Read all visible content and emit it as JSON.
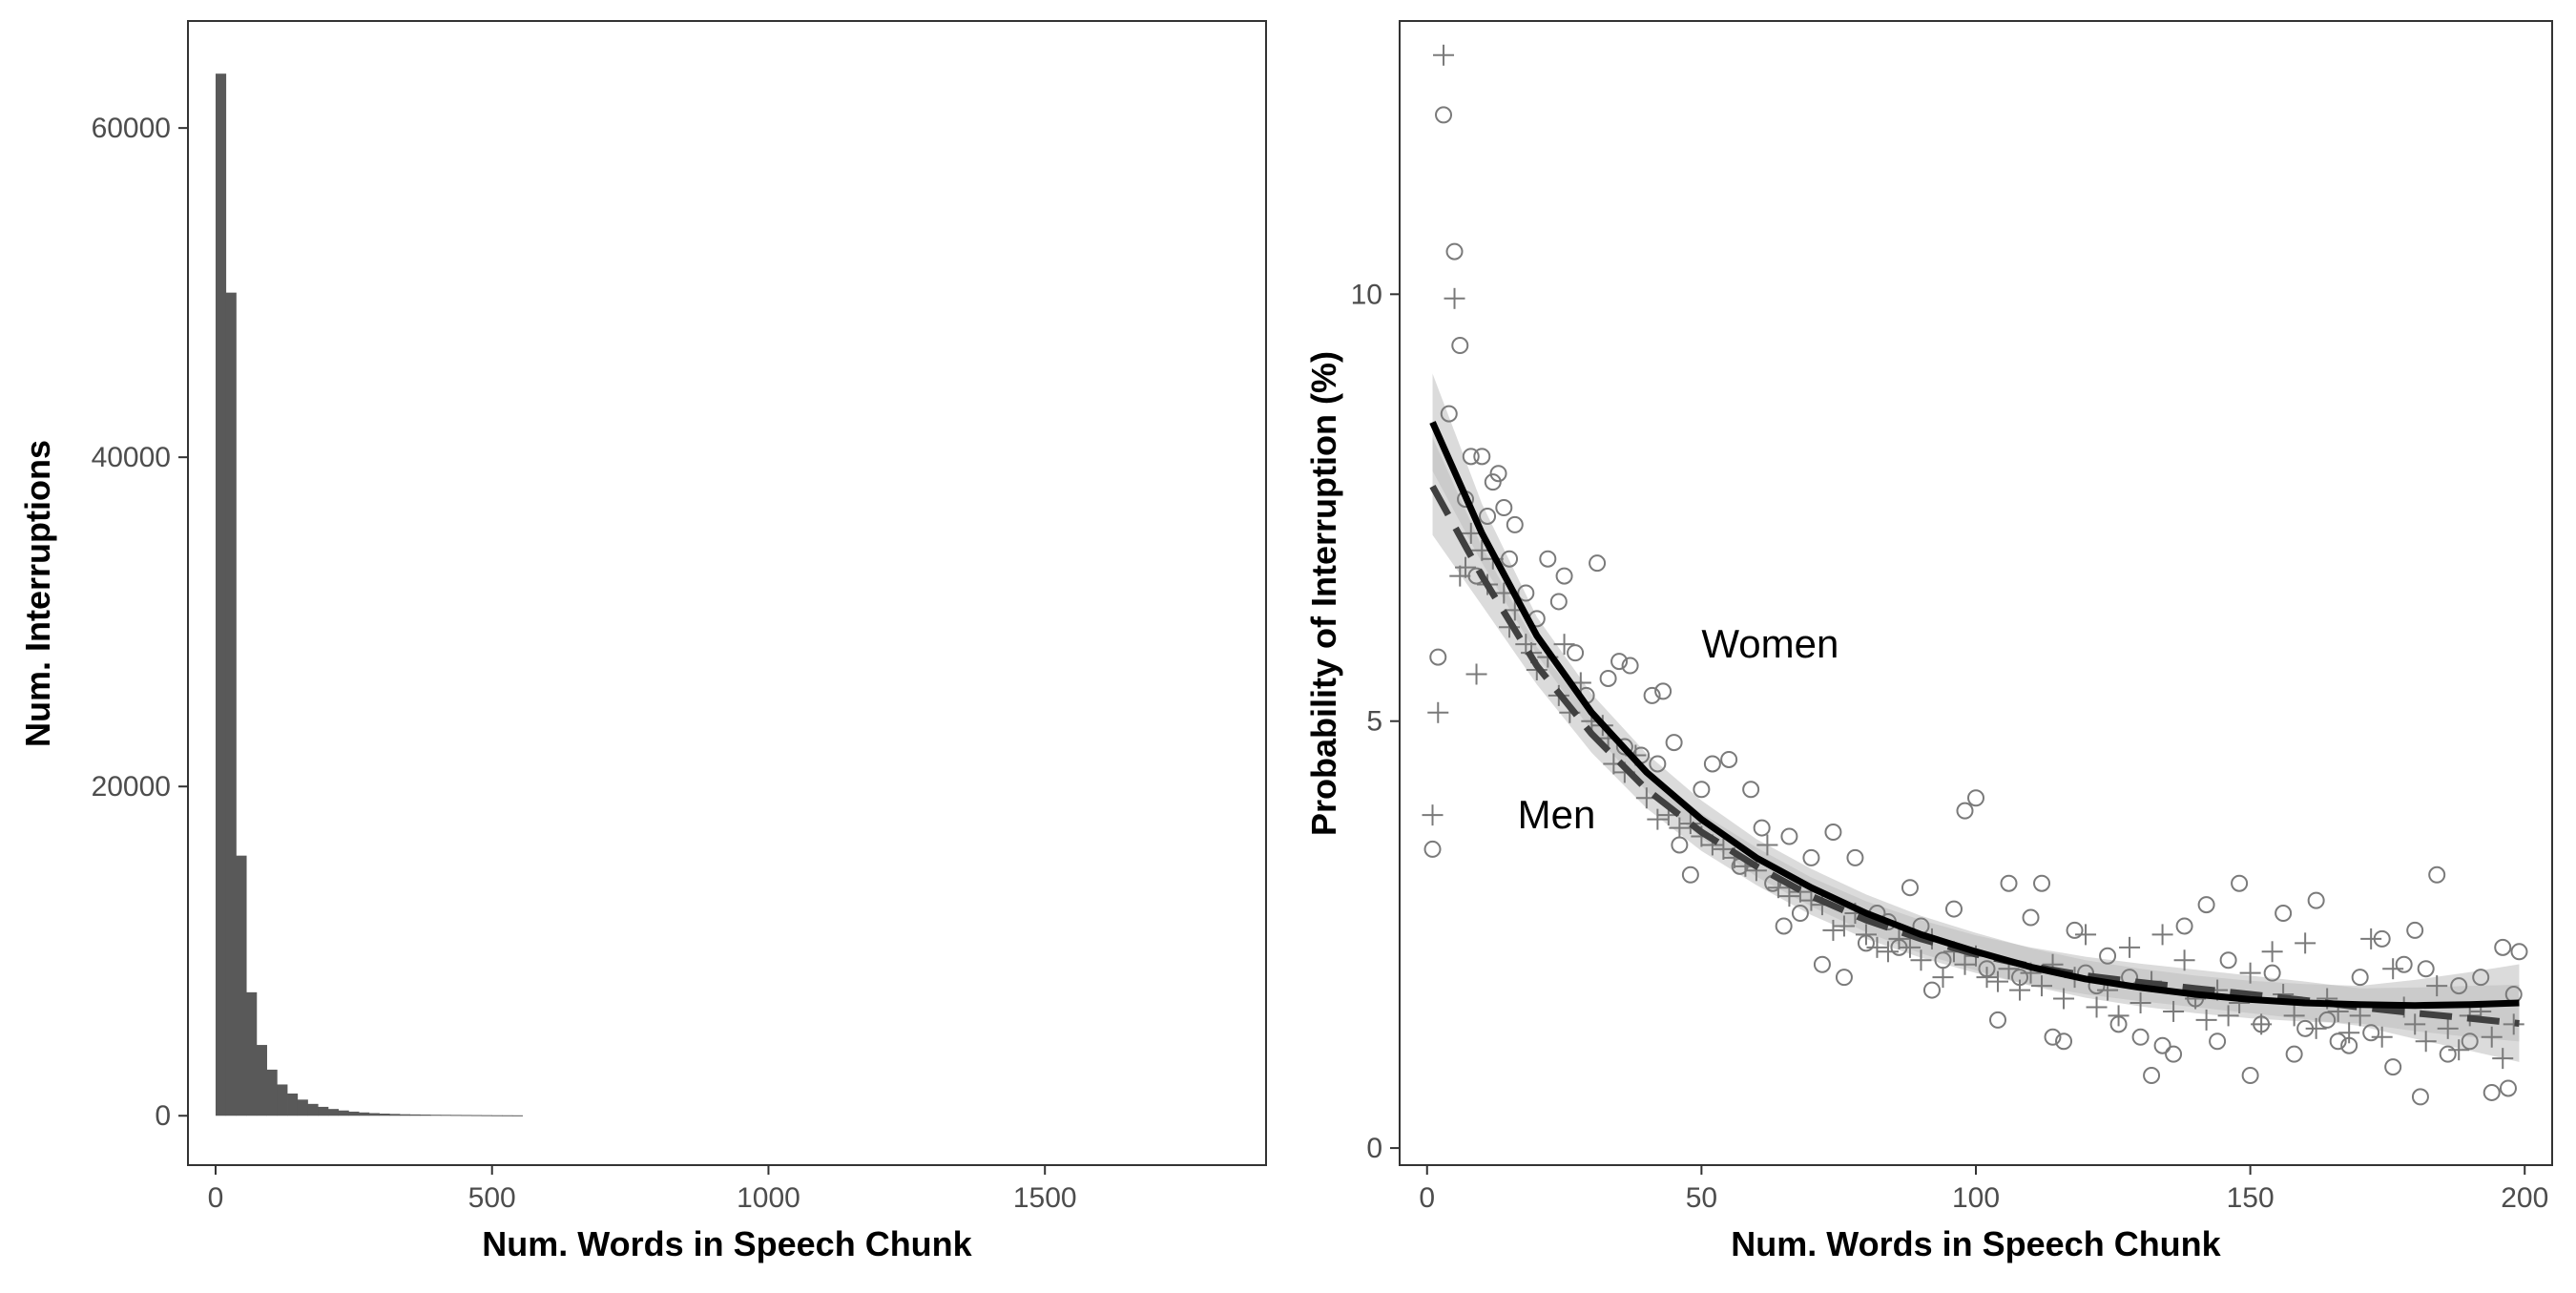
{
  "chart_data": [
    {
      "type": "bar",
      "subtype": "histogram",
      "xlabel": "Num. Words in Speech Chunk",
      "ylabel": "Num. Interruptions",
      "xlim": [
        -50,
        1900
      ],
      "ylim": [
        -3000,
        66500
      ],
      "xticks": [
        0,
        500,
        1000,
        1500
      ],
      "yticks": [
        0,
        20000,
        40000,
        60000
      ],
      "bin_width": 18.5,
      "bin_start": 0,
      "values": [
        63300,
        50000,
        15800,
        7500,
        4300,
        2800,
        1900,
        1350,
        980,
        720,
        540,
        410,
        320,
        250,
        200,
        160,
        130,
        110,
        90,
        80,
        70,
        60,
        55,
        50,
        45,
        40,
        35,
        30,
        28,
        25
      ],
      "grid": false,
      "bar_color": "#595959"
    },
    {
      "type": "scatter",
      "xlabel": "Num. Words in Speech Chunk",
      "ylabel": "Probability of Interruption (%)",
      "xlim": [
        -5,
        205
      ],
      "ylim": [
        -0.2,
        13.2
      ],
      "xticks": [
        0,
        50,
        100,
        150,
        200
      ],
      "yticks": [
        0,
        5,
        10
      ],
      "grid": false,
      "annotations": [
        {
          "text": "Women",
          "x": 50,
          "y": 5.9
        },
        {
          "text": "Men",
          "x": 16.5,
          "y": 3.9
        }
      ],
      "series": [
        {
          "marker": "circle",
          "line_style": "solid",
          "fit": [
            [
              1,
              8.5
            ],
            [
              10,
              7.2
            ],
            [
              20,
              6.0
            ],
            [
              30,
              5.1
            ],
            [
              40,
              4.4
            ],
            [
              50,
              3.85
            ],
            [
              60,
              3.4
            ],
            [
              70,
              3.05
            ],
            [
              80,
              2.75
            ],
            [
              90,
              2.5
            ],
            [
              100,
              2.3
            ],
            [
              110,
              2.12
            ],
            [
              120,
              1.98
            ],
            [
              130,
              1.88
            ],
            [
              140,
              1.8
            ],
            [
              150,
              1.74
            ],
            [
              160,
              1.7
            ],
            [
              170,
              1.68
            ],
            [
              180,
              1.67
            ],
            [
              190,
              1.68
            ],
            [
              199,
              1.7
            ]
          ],
          "points": [
            [
              1,
              3.5
            ],
            [
              2,
              5.75
            ],
            [
              3,
              12.1
            ],
            [
              4,
              8.6
            ],
            [
              5,
              10.5
            ],
            [
              6,
              9.4
            ],
            [
              7,
              7.6
            ],
            [
              8,
              8.1
            ],
            [
              9,
              6.7
            ],
            [
              10,
              8.1
            ],
            [
              11,
              7.4
            ],
            [
              12,
              7.8
            ],
            [
              13,
              7.9
            ],
            [
              14,
              7.5
            ],
            [
              15,
              6.9
            ],
            [
              16,
              7.3
            ],
            [
              18,
              6.5
            ],
            [
              20,
              6.2
            ],
            [
              22,
              6.9
            ],
            [
              24,
              6.4
            ],
            [
              25,
              6.7
            ],
            [
              27,
              5.8
            ],
            [
              29,
              5.3
            ],
            [
              31,
              6.85
            ],
            [
              33,
              5.5
            ],
            [
              35,
              5.7
            ],
            [
              36,
              4.7
            ],
            [
              37,
              5.65
            ],
            [
              39,
              4.6
            ],
            [
              41,
              5.3
            ],
            [
              42,
              4.5
            ],
            [
              43,
              5.35
            ],
            [
              45,
              4.75
            ],
            [
              46,
              3.55
            ],
            [
              48,
              3.2
            ],
            [
              50,
              4.2
            ],
            [
              52,
              4.5
            ],
            [
              55,
              4.55
            ],
            [
              57,
              3.3
            ],
            [
              59,
              4.2
            ],
            [
              61,
              3.75
            ],
            [
              63,
              3.1
            ],
            [
              65,
              2.6
            ],
            [
              66,
              3.65
            ],
            [
              68,
              2.75
            ],
            [
              70,
              3.4
            ],
            [
              72,
              2.15
            ],
            [
              74,
              3.7
            ],
            [
              76,
              2.0
            ],
            [
              78,
              3.4
            ],
            [
              80,
              2.4
            ],
            [
              82,
              2.75
            ],
            [
              84,
              2.65
            ],
            [
              86,
              2.35
            ],
            [
              88,
              3.05
            ],
            [
              90,
              2.6
            ],
            [
              92,
              1.85
            ],
            [
              94,
              2.2
            ],
            [
              96,
              2.8
            ],
            [
              98,
              3.95
            ],
            [
              100,
              4.1
            ],
            [
              102,
              2.1
            ],
            [
              104,
              1.5
            ],
            [
              106,
              3.1
            ],
            [
              108,
              2.0
            ],
            [
              110,
              2.7
            ],
            [
              112,
              3.1
            ],
            [
              114,
              1.3
            ],
            [
              116,
              1.25
            ],
            [
              118,
              2.55
            ],
            [
              120,
              2.05
            ],
            [
              122,
              1.9
            ],
            [
              124,
              2.25
            ],
            [
              126,
              1.45
            ],
            [
              128,
              2.0
            ],
            [
              130,
              1.3
            ],
            [
              132,
              0.85
            ],
            [
              134,
              1.2
            ],
            [
              136,
              1.1
            ],
            [
              138,
              2.6
            ],
            [
              140,
              1.75
            ],
            [
              142,
              2.85
            ],
            [
              144,
              1.25
            ],
            [
              146,
              2.2
            ],
            [
              148,
              3.1
            ],
            [
              150,
              0.85
            ],
            [
              152,
              1.45
            ],
            [
              154,
              2.05
            ],
            [
              156,
              2.75
            ],
            [
              158,
              1.1
            ],
            [
              160,
              1.4
            ],
            [
              162,
              2.9
            ],
            [
              164,
              1.5
            ],
            [
              166,
              1.25
            ],
            [
              168,
              1.2
            ],
            [
              170,
              2.0
            ],
            [
              172,
              1.35
            ],
            [
              174,
              2.45
            ],
            [
              176,
              0.95
            ],
            [
              178,
              2.15
            ],
            [
              180,
              2.55
            ],
            [
              181,
              0.6
            ],
            [
              182,
              2.1
            ],
            [
              184,
              3.2
            ],
            [
              186,
              1.1
            ],
            [
              188,
              1.9
            ],
            [
              190,
              1.25
            ],
            [
              192,
              2.0
            ],
            [
              194,
              0.65
            ],
            [
              196,
              2.35
            ],
            [
              197,
              0.7
            ],
            [
              198,
              1.8
            ],
            [
              199,
              2.3
            ]
          ]
        },
        {
          "marker": "plus",
          "line_style": "dashed",
          "fit": [
            [
              1,
              7.75
            ],
            [
              10,
              6.7
            ],
            [
              20,
              5.65
            ],
            [
              30,
              4.85
            ],
            [
              40,
              4.2
            ],
            [
              50,
              3.7
            ],
            [
              60,
              3.3
            ],
            [
              70,
              2.95
            ],
            [
              80,
              2.67
            ],
            [
              90,
              2.45
            ],
            [
              100,
              2.27
            ],
            [
              110,
              2.13
            ],
            [
              120,
              2.02
            ],
            [
              130,
              1.94
            ],
            [
              140,
              1.87
            ],
            [
              150,
              1.8
            ],
            [
              160,
              1.73
            ],
            [
              170,
              1.65
            ],
            [
              180,
              1.58
            ],
            [
              190,
              1.52
            ],
            [
              199,
              1.46
            ]
          ],
          "points": [
            [
              1,
              3.9
            ],
            [
              2,
              5.1
            ],
            [
              3,
              12.8
            ],
            [
              5,
              9.95
            ],
            [
              6,
              6.7
            ],
            [
              7,
              6.8
            ],
            [
              8,
              7.2
            ],
            [
              9,
              5.55
            ],
            [
              10,
              7.0
            ],
            [
              11,
              6.6
            ],
            [
              12,
              6.9
            ],
            [
              14,
              6.5
            ],
            [
              15,
              6.1
            ],
            [
              16,
              6.3
            ],
            [
              18,
              5.9
            ],
            [
              19,
              5.8
            ],
            [
              20,
              5.6
            ],
            [
              22,
              5.75
            ],
            [
              24,
              5.3
            ],
            [
              25,
              5.9
            ],
            [
              26,
              5.1
            ],
            [
              28,
              5.45
            ],
            [
              30,
              5.0
            ],
            [
              32,
              4.95
            ],
            [
              33,
              4.8
            ],
            [
              34,
              4.5
            ],
            [
              36,
              4.4
            ],
            [
              38,
              4.6
            ],
            [
              40,
              4.1
            ],
            [
              42,
              3.85
            ],
            [
              44,
              3.9
            ],
            [
              46,
              3.75
            ],
            [
              48,
              3.8
            ],
            [
              50,
              3.65
            ],
            [
              52,
              3.55
            ],
            [
              54,
              3.5
            ],
            [
              56,
              3.4
            ],
            [
              58,
              3.3
            ],
            [
              60,
              3.25
            ],
            [
              62,
              3.55
            ],
            [
              64,
              3.05
            ],
            [
              66,
              2.95
            ],
            [
              68,
              3.0
            ],
            [
              70,
              2.9
            ],
            [
              72,
              2.85
            ],
            [
              74,
              2.55
            ],
            [
              76,
              2.6
            ],
            [
              78,
              2.75
            ],
            [
              80,
              2.5
            ],
            [
              82,
              2.35
            ],
            [
              84,
              2.3
            ],
            [
              86,
              2.45
            ],
            [
              88,
              2.35
            ],
            [
              90,
              2.2
            ],
            [
              92,
              2.45
            ],
            [
              94,
              2.0
            ],
            [
              96,
              2.3
            ],
            [
              98,
              2.15
            ],
            [
              100,
              2.25
            ],
            [
              102,
              2.0
            ],
            [
              104,
              1.95
            ],
            [
              106,
              2.1
            ],
            [
              108,
              1.85
            ],
            [
              110,
              2.05
            ],
            [
              112,
              1.9
            ],
            [
              114,
              2.15
            ],
            [
              116,
              1.75
            ],
            [
              118,
              2.0
            ],
            [
              120,
              2.5
            ],
            [
              122,
              1.65
            ],
            [
              124,
              1.85
            ],
            [
              126,
              1.55
            ],
            [
              128,
              2.35
            ],
            [
              130,
              1.7
            ],
            [
              132,
              1.95
            ],
            [
              134,
              2.5
            ],
            [
              136,
              1.6
            ],
            [
              138,
              2.2
            ],
            [
              140,
              1.75
            ],
            [
              142,
              1.5
            ],
            [
              144,
              1.85
            ],
            [
              146,
              1.55
            ],
            [
              148,
              1.7
            ],
            [
              150,
              2.05
            ],
            [
              152,
              1.45
            ],
            [
              154,
              2.3
            ],
            [
              156,
              1.8
            ],
            [
              158,
              1.55
            ],
            [
              160,
              2.4
            ],
            [
              162,
              1.4
            ],
            [
              164,
              1.75
            ],
            [
              166,
              1.6
            ],
            [
              168,
              1.35
            ],
            [
              170,
              1.55
            ],
            [
              172,
              2.45
            ],
            [
              174,
              1.3
            ],
            [
              176,
              2.1
            ],
            [
              178,
              1.65
            ],
            [
              180,
              1.45
            ],
            [
              182,
              1.25
            ],
            [
              184,
              1.9
            ],
            [
              186,
              1.4
            ],
            [
              188,
              1.15
            ],
            [
              190,
              1.55
            ],
            [
              192,
              1.6
            ],
            [
              194,
              1.3
            ],
            [
              196,
              1.05
            ],
            [
              198,
              1.45
            ]
          ]
        }
      ]
    }
  ]
}
